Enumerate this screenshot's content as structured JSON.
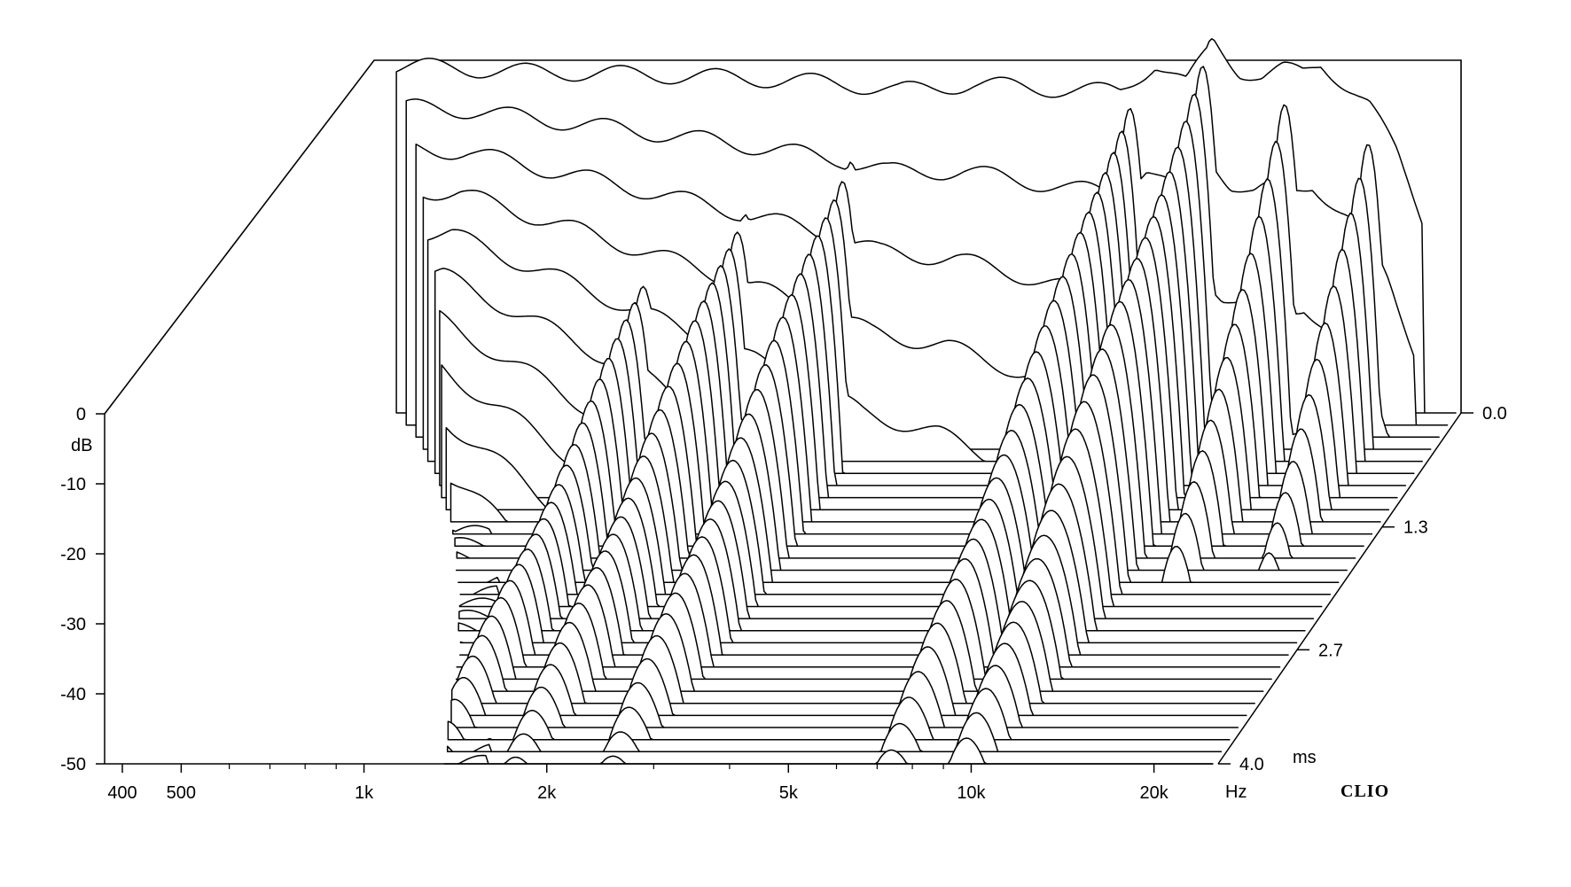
{
  "chart_data": {
    "type": "waterfall",
    "x_axis": {
      "scale": "log",
      "range_hz": [
        400,
        25000
      ],
      "ticks": [
        {
          "value": 400,
          "label": "400"
        },
        {
          "value": 500,
          "label": "500"
        },
        {
          "value": 1000,
          "label": "1k"
        },
        {
          "value": 2000,
          "label": "2k"
        },
        {
          "value": 5000,
          "label": "5k"
        },
        {
          "value": 10000,
          "label": "10k"
        },
        {
          "value": 20000,
          "label": "20k"
        }
      ],
      "minor_ticks_hz": [
        600,
        700,
        800,
        900,
        3000,
        4000,
        6000,
        7000,
        8000,
        9000
      ],
      "unit": "Hz"
    },
    "y_axis": {
      "range_db": [
        -50,
        0
      ],
      "ticks": [
        {
          "value": 0,
          "label": "0"
        },
        {
          "value": -10,
          "label": "-10"
        },
        {
          "value": -20,
          "label": "-20"
        },
        {
          "value": -30,
          "label": "-30"
        },
        {
          "value": -40,
          "label": "-40"
        },
        {
          "value": -50,
          "label": "-50"
        }
      ],
      "unit": "dB"
    },
    "z_axis": {
      "range_ms": [
        0,
        4.0
      ],
      "ticks": [
        {
          "value": 0.0,
          "label": "0.0"
        },
        {
          "value": 1.3,
          "label": "1.3"
        },
        {
          "value": 2.7,
          "label": "2.7"
        },
        {
          "value": 4.0,
          "label": "4.0"
        }
      ],
      "unit": "ms"
    },
    "slice_count": 30,
    "initial_response": {
      "freq_hz": [
        500,
        700,
        1000,
        1500,
        2000,
        2500,
        3000,
        4000,
        5000,
        6000,
        7000,
        8000,
        9000,
        10000,
        11000,
        12000,
        13000,
        14000,
        15000,
        17000,
        18000,
        20000,
        22000
      ],
      "level_db": [
        -0.5,
        -1.2,
        -1.5,
        -2,
        -2.5,
        -3,
        -4,
        -3,
        -3.5,
        -4,
        -4,
        0,
        -3,
        3,
        -1,
        -2,
        -1,
        -1.5,
        0,
        -4,
        -6,
        -13,
        -22
      ]
    },
    "resonances": [
      {
        "center_hz": 9900,
        "peak_db": 3,
        "decays_to_ms": 4.0
      },
      {
        "center_hz": 7500,
        "peak_db": -2,
        "decays_to_ms": 4.0
      },
      {
        "center_hz": 2600,
        "peak_db": -10,
        "decays_to_ms": 4.0
      },
      {
        "center_hz": 1800,
        "peak_db": -15,
        "decays_to_ms": 4.0
      },
      {
        "center_hz": 1300,
        "peak_db": -22,
        "decays_to_ms": 4.0
      },
      {
        "center_hz": 13500,
        "peak_db": -2,
        "decays_to_ms": 2.0
      },
      {
        "center_hz": 18500,
        "peak_db": -8,
        "decays_to_ms": 1.8
      }
    ],
    "brand": "CLIO"
  }
}
